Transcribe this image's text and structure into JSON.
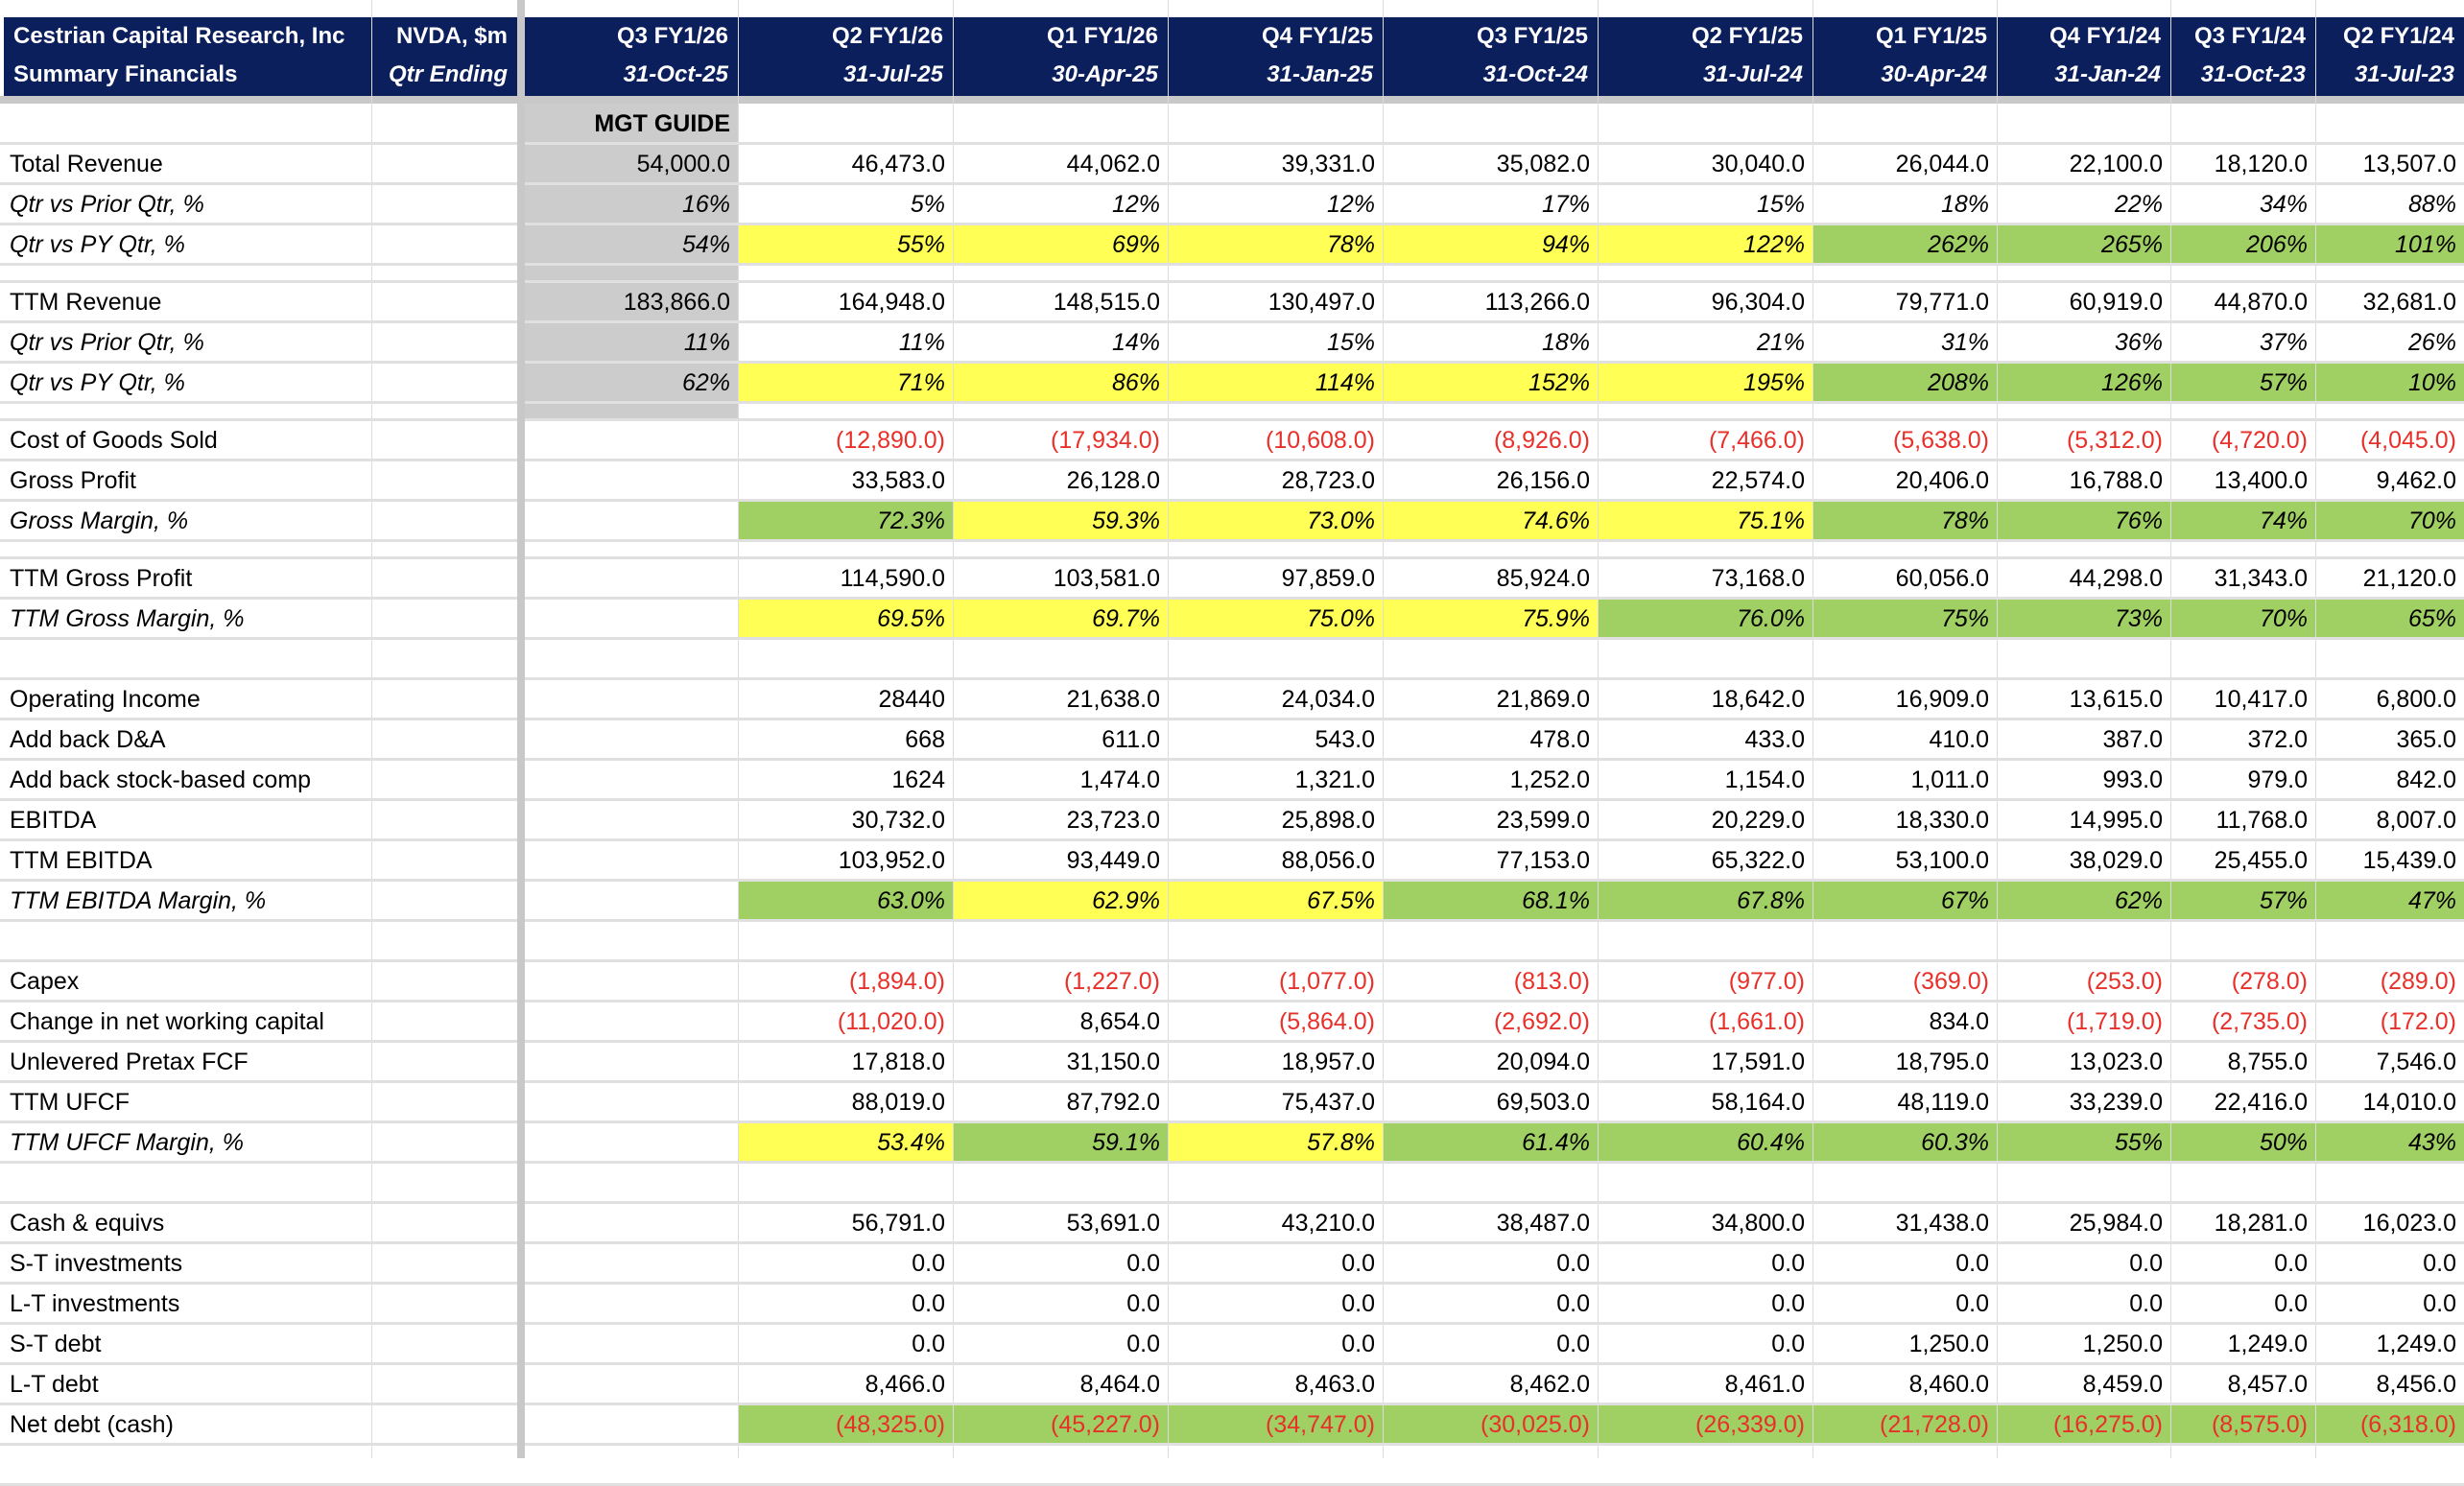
{
  "header": {
    "company": "Cestrian Capital Research, Inc",
    "subtitle": "Summary Financials",
    "ticker": "NVDA, $m",
    "period_label": "Qtr Ending",
    "guide_label": "MGT GUIDE",
    "columns": [
      {
        "quarter": "Q3 FY1/26",
        "date": "31-Oct-25"
      },
      {
        "quarter": "Q2 FY1/26",
        "date": "31-Jul-25"
      },
      {
        "quarter": "Q1 FY1/26",
        "date": "30-Apr-25"
      },
      {
        "quarter": "Q4 FY1/25",
        "date": "31-Jan-25"
      },
      {
        "quarter": "Q3 FY1/25",
        "date": "31-Oct-24"
      },
      {
        "quarter": "Q2 FY1/25",
        "date": "31-Jul-24"
      },
      {
        "quarter": "Q1 FY1/25",
        "date": "30-Apr-24"
      },
      {
        "quarter": "Q4 FY1/24",
        "date": "31-Jan-24"
      },
      {
        "quarter": "Q3 FY1/24",
        "date": "31-Oct-23"
      },
      {
        "quarter": "Q2 FY1/24",
        "date": "31-Jul-23"
      }
    ]
  },
  "colors": {
    "header_bg": "#0b1f5c",
    "yellow": "#ffff55",
    "green": "#a0cf63",
    "guide_gray": "#cccccc",
    "negative": "#e8302a"
  },
  "rows": [
    {
      "label": "Total Revenue",
      "italic": false,
      "values": [
        "54,000.0",
        "46,473.0",
        "44,062.0",
        "39,331.0",
        "35,082.0",
        "30,040.0",
        "26,044.0",
        "22,100.0",
        "18,120.0",
        "13,507.0"
      ],
      "fills": [
        "",
        "",
        "",
        "",
        "",
        "",
        "",
        "",
        "",
        ""
      ]
    },
    {
      "label": "Qtr vs Prior Qtr, %",
      "italic": true,
      "values": [
        "16%",
        "5%",
        "12%",
        "12%",
        "17%",
        "15%",
        "18%",
        "22%",
        "34%",
        "88%"
      ],
      "fills": [
        "",
        "",
        "",
        "",
        "",
        "",
        "",
        "",
        "",
        ""
      ]
    },
    {
      "label": "Qtr vs PY Qtr, %",
      "italic": true,
      "values": [
        "54%",
        "55%",
        "69%",
        "78%",
        "94%",
        "122%",
        "262%",
        "265%",
        "206%",
        "101%"
      ],
      "fills": [
        "",
        "y",
        "y",
        "y",
        "y",
        "y",
        "g",
        "g",
        "g",
        "g"
      ]
    },
    {
      "label": "TTM Revenue",
      "italic": false,
      "values": [
        "183,866.0",
        "164,948.0",
        "148,515.0",
        "130,497.0",
        "113,266.0",
        "96,304.0",
        "79,771.0",
        "60,919.0",
        "44,870.0",
        "32,681.0"
      ],
      "fills": [
        "",
        "",
        "",
        "",
        "",
        "",
        "",
        "",
        "",
        ""
      ]
    },
    {
      "label": "Qtr vs Prior Qtr, %",
      "italic": true,
      "values": [
        "11%",
        "11%",
        "14%",
        "15%",
        "18%",
        "21%",
        "31%",
        "36%",
        "37%",
        "26%"
      ],
      "fills": [
        "",
        "",
        "",
        "",
        "",
        "",
        "",
        "",
        "",
        ""
      ]
    },
    {
      "label": "Qtr vs PY Qtr, %",
      "italic": true,
      "values": [
        "62%",
        "71%",
        "86%",
        "114%",
        "152%",
        "195%",
        "208%",
        "126%",
        "57%",
        "10%"
      ],
      "fills": [
        "",
        "y",
        "y",
        "y",
        "y",
        "y",
        "g",
        "g",
        "g",
        "g"
      ]
    },
    {
      "label": "Cost of Goods Sold",
      "italic": false,
      "values": [
        "",
        "(12,890.0)",
        "(17,934.0)",
        "(10,608.0)",
        "(8,926.0)",
        "(7,466.0)",
        "(5,638.0)",
        "(5,312.0)",
        "(4,720.0)",
        "(4,045.0)"
      ],
      "fills": [
        "",
        "",
        "",
        "",
        "",
        "",
        "",
        "",
        "",
        ""
      ]
    },
    {
      "label": "Gross Profit",
      "italic": false,
      "values": [
        "",
        "33,583.0",
        "26,128.0",
        "28,723.0",
        "26,156.0",
        "22,574.0",
        "20,406.0",
        "16,788.0",
        "13,400.0",
        "9,462.0"
      ],
      "fills": [
        "",
        "",
        "",
        "",
        "",
        "",
        "",
        "",
        "",
        ""
      ]
    },
    {
      "label": "Gross Margin, %",
      "italic": true,
      "values": [
        "",
        "72.3%",
        "59.3%",
        "73.0%",
        "74.6%",
        "75.1%",
        "78%",
        "76%",
        "74%",
        "70%"
      ],
      "fills": [
        "",
        "g",
        "y",
        "y",
        "y",
        "y",
        "g",
        "g",
        "g",
        "g"
      ]
    },
    {
      "label": "TTM Gross Profit",
      "italic": false,
      "values": [
        "",
        "114,590.0",
        "103,581.0",
        "97,859.0",
        "85,924.0",
        "73,168.0",
        "60,056.0",
        "44,298.0",
        "31,343.0",
        "21,120.0"
      ],
      "fills": [
        "",
        "",
        "",
        "",
        "",
        "",
        "",
        "",
        "",
        ""
      ]
    },
    {
      "label": "TTM Gross Margin, %",
      "italic": true,
      "values": [
        "",
        "69.5%",
        "69.7%",
        "75.0%",
        "75.9%",
        "76.0%",
        "75%",
        "73%",
        "70%",
        "65%"
      ],
      "fills": [
        "",
        "y",
        "y",
        "y",
        "y",
        "g",
        "g",
        "g",
        "g",
        "g"
      ]
    },
    {
      "label": "Operating Income",
      "italic": false,
      "values": [
        "",
        "28440",
        "21,638.0",
        "24,034.0",
        "21,869.0",
        "18,642.0",
        "16,909.0",
        "13,615.0",
        "10,417.0",
        "6,800.0"
      ],
      "fills": [
        "",
        "",
        "",
        "",
        "",
        "",
        "",
        "",
        "",
        ""
      ]
    },
    {
      "label": "Add back D&A",
      "italic": false,
      "values": [
        "",
        "668",
        "611.0",
        "543.0",
        "478.0",
        "433.0",
        "410.0",
        "387.0",
        "372.0",
        "365.0"
      ],
      "fills": [
        "",
        "",
        "",
        "",
        "",
        "",
        "",
        "",
        "",
        ""
      ]
    },
    {
      "label": "Add back stock-based comp",
      "italic": false,
      "values": [
        "",
        "1624",
        "1,474.0",
        "1,321.0",
        "1,252.0",
        "1,154.0",
        "1,011.0",
        "993.0",
        "979.0",
        "842.0"
      ],
      "fills": [
        "",
        "",
        "",
        "",
        "",
        "",
        "",
        "",
        "",
        ""
      ]
    },
    {
      "label": "EBITDA",
      "italic": false,
      "values": [
        "",
        "30,732.0",
        "23,723.0",
        "25,898.0",
        "23,599.0",
        "20,229.0",
        "18,330.0",
        "14,995.0",
        "11,768.0",
        "8,007.0"
      ],
      "fills": [
        "",
        "",
        "",
        "",
        "",
        "",
        "",
        "",
        "",
        ""
      ]
    },
    {
      "label": "TTM EBITDA",
      "italic": false,
      "values": [
        "",
        "103,952.0",
        "93,449.0",
        "88,056.0",
        "77,153.0",
        "65,322.0",
        "53,100.0",
        "38,029.0",
        "25,455.0",
        "15,439.0"
      ],
      "fills": [
        "",
        "",
        "",
        "",
        "",
        "",
        "",
        "",
        "",
        ""
      ]
    },
    {
      "label": "TTM EBITDA Margin, %",
      "italic": true,
      "values": [
        "",
        "63.0%",
        "62.9%",
        "67.5%",
        "68.1%",
        "67.8%",
        "67%",
        "62%",
        "57%",
        "47%"
      ],
      "fills": [
        "",
        "g",
        "y",
        "y",
        "g",
        "g",
        "g",
        "g",
        "g",
        "g"
      ]
    },
    {
      "label": "Capex",
      "italic": false,
      "values": [
        "",
        "(1,894.0)",
        "(1,227.0)",
        "(1,077.0)",
        "(813.0)",
        "(977.0)",
        "(369.0)",
        "(253.0)",
        "(278.0)",
        "(289.0)"
      ],
      "fills": [
        "",
        "",
        "",
        "",
        "",
        "",
        "",
        "",
        "",
        ""
      ]
    },
    {
      "label": "Change in net working capital",
      "italic": false,
      "values": [
        "",
        "(11,020.0)",
        "8,654.0",
        "(5,864.0)",
        "(2,692.0)",
        "(1,661.0)",
        "834.0",
        "(1,719.0)",
        "(2,735.0)",
        "(172.0)"
      ],
      "fills": [
        "",
        "",
        "",
        "",
        "",
        "",
        "",
        "",
        "",
        ""
      ]
    },
    {
      "label": "Unlevered Pretax FCF",
      "italic": false,
      "values": [
        "",
        "17,818.0",
        "31,150.0",
        "18,957.0",
        "20,094.0",
        "17,591.0",
        "18,795.0",
        "13,023.0",
        "8,755.0",
        "7,546.0"
      ],
      "fills": [
        "",
        "",
        "",
        "",
        "",
        "",
        "",
        "",
        "",
        ""
      ]
    },
    {
      "label": "TTM UFCF",
      "italic": false,
      "values": [
        "",
        "88,019.0",
        "87,792.0",
        "75,437.0",
        "69,503.0",
        "58,164.0",
        "48,119.0",
        "33,239.0",
        "22,416.0",
        "14,010.0"
      ],
      "fills": [
        "",
        "",
        "",
        "",
        "",
        "",
        "",
        "",
        "",
        ""
      ]
    },
    {
      "label": "TTM UFCF Margin, %",
      "italic": true,
      "values": [
        "",
        "53.4%",
        "59.1%",
        "57.8%",
        "61.4%",
        "60.4%",
        "60.3%",
        "55%",
        "50%",
        "43%"
      ],
      "fills": [
        "",
        "y",
        "g",
        "y",
        "g",
        "g",
        "g",
        "g",
        "g",
        "g"
      ]
    },
    {
      "label": "Cash & equivs",
      "italic": false,
      "values": [
        "",
        "56,791.0",
        "53,691.0",
        "43,210.0",
        "38,487.0",
        "34,800.0",
        "31,438.0",
        "25,984.0",
        "18,281.0",
        "16,023.0"
      ],
      "fills": [
        "",
        "",
        "",
        "",
        "",
        "",
        "",
        "",
        "",
        ""
      ]
    },
    {
      "label": "S-T investments",
      "italic": false,
      "values": [
        "",
        "0.0",
        "0.0",
        "0.0",
        "0.0",
        "0.0",
        "0.0",
        "0.0",
        "0.0",
        "0.0"
      ],
      "fills": [
        "",
        "",
        "",
        "",
        "",
        "",
        "",
        "",
        "",
        ""
      ]
    },
    {
      "label": "L-T investments",
      "italic": false,
      "values": [
        "",
        "0.0",
        "0.0",
        "0.0",
        "0.0",
        "0.0",
        "0.0",
        "0.0",
        "0.0",
        "0.0"
      ],
      "fills": [
        "",
        "",
        "",
        "",
        "",
        "",
        "",
        "",
        "",
        ""
      ]
    },
    {
      "label": "S-T debt",
      "italic": false,
      "values": [
        "",
        "0.0",
        "0.0",
        "0.0",
        "0.0",
        "0.0",
        "1,250.0",
        "1,250.0",
        "1,249.0",
        "1,249.0"
      ],
      "fills": [
        "",
        "",
        "",
        "",
        "",
        "",
        "",
        "",
        "",
        ""
      ]
    },
    {
      "label": "L-T debt",
      "italic": false,
      "values": [
        "",
        "8,466.0",
        "8,464.0",
        "8,463.0",
        "8,462.0",
        "8,461.0",
        "8,460.0",
        "8,459.0",
        "8,457.0",
        "8,456.0"
      ],
      "fills": [
        "",
        "",
        "",
        "",
        "",
        "",
        "",
        "",
        "",
        ""
      ]
    },
    {
      "label": "Net debt (cash)",
      "italic": false,
      "values": [
        "",
        "(48,325.0)",
        "(45,227.0)",
        "(34,747.0)",
        "(30,025.0)",
        "(26,339.0)",
        "(21,728.0)",
        "(16,275.0)",
        "(8,575.0)",
        "(6,318.0)"
      ],
      "fills": [
        "",
        "g",
        "g",
        "g",
        "g",
        "g",
        "g",
        "g",
        "g",
        "g"
      ]
    }
  ]
}
